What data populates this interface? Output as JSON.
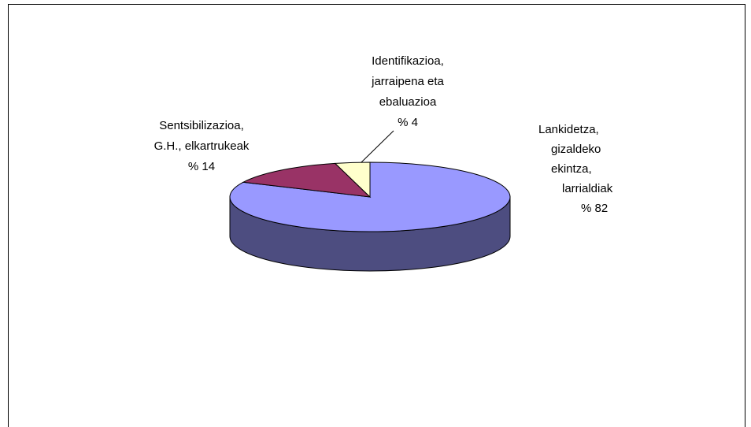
{
  "chart_data": {
    "type": "pie3d",
    "categories": [
      [
        "Lankidetza,",
        "gizaldeko",
        "ekintza,",
        "larrialdiak"
      ],
      [
        "Sentsibilizazioa,",
        "G.H., elkartrukeak"
      ],
      [
        "Identifikazioa,",
        "jarraipena eta",
        "ebaluazioa"
      ]
    ],
    "values": [
      82,
      14,
      4
    ],
    "value_labels": [
      "% 82",
      "% 14",
      "% 4"
    ],
    "colors": [
      "#9999ff",
      "#993366",
      "#ffffcc"
    ],
    "side_colors": [
      "#4d4d80",
      "#4d1a33",
      "#808066"
    ]
  }
}
